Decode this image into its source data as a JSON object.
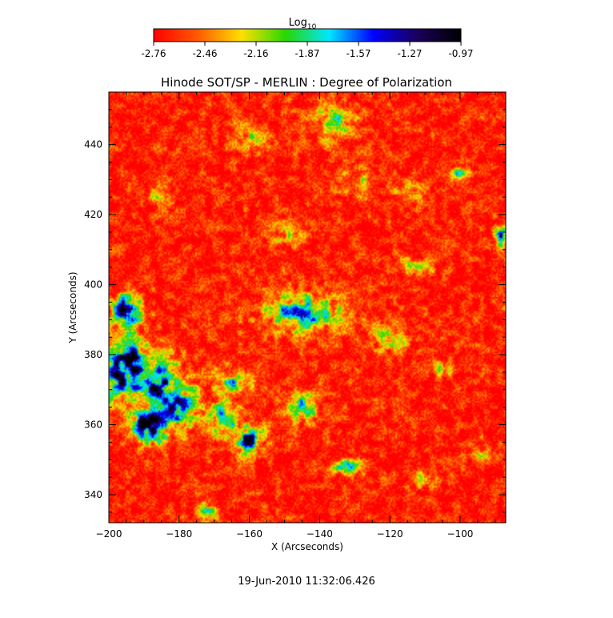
{
  "chart_data": {
    "type": "heatmap",
    "title": "Hinode SOT/SP - MERLIN : Degree of Polarization",
    "xlabel": "X (Arcseconds)",
    "ylabel": "Y (Arcseconds)",
    "xlim": [
      -200,
      -87
    ],
    "ylim": [
      332,
      455
    ],
    "x_ticks": [
      -200,
      -180,
      -160,
      -140,
      -120,
      -100
    ],
    "y_ticks": [
      340,
      360,
      380,
      400,
      420,
      440
    ],
    "colorbar": {
      "label_base": "Log",
      "label_sub": "10",
      "min": -2.76,
      "max": -0.97,
      "ticks": [
        "-2.76",
        "-2.46",
        "-2.16",
        "-1.87",
        "-1.57",
        "-1.27",
        "-0.97"
      ],
      "colors": [
        "#ff0000",
        "#ff5a00",
        "#ffe000",
        "#28d800",
        "#00e6ff",
        "#0000ff",
        "#1a005a",
        "#000000"
      ]
    },
    "background_level": -2.68,
    "clusters": [
      {
        "x": -195,
        "y": 376,
        "value": -1.05,
        "rx": 6,
        "ry": 9
      },
      {
        "x": -188,
        "y": 360,
        "value": -1.12,
        "rx": 5,
        "ry": 5
      },
      {
        "x": -186,
        "y": 372,
        "value": -1.25,
        "rx": 6,
        "ry": 7
      },
      {
        "x": -195,
        "y": 392,
        "value": -1.4,
        "rx": 4,
        "ry": 5
      },
      {
        "x": -182,
        "y": 366,
        "value": -1.5,
        "rx": 7,
        "ry": 7
      },
      {
        "x": -160,
        "y": 356,
        "value": -1.55,
        "rx": 4,
        "ry": 4
      },
      {
        "x": -145,
        "y": 392,
        "value": -1.7,
        "rx": 10,
        "ry": 5
      },
      {
        "x": -145,
        "y": 365,
        "value": -1.8,
        "rx": 4,
        "ry": 4
      },
      {
        "x": -167,
        "y": 362,
        "value": -1.9,
        "rx": 5,
        "ry": 5
      },
      {
        "x": -88,
        "y": 414,
        "value": -1.7,
        "rx": 2,
        "ry": 3
      },
      {
        "x": -100,
        "y": 432,
        "value": -1.95,
        "rx": 2,
        "ry": 2
      },
      {
        "x": -132,
        "y": 348,
        "value": -1.95,
        "rx": 4,
        "ry": 2
      },
      {
        "x": -136,
        "y": 446,
        "value": -2.05,
        "rx": 6,
        "ry": 5
      },
      {
        "x": -165,
        "y": 372,
        "value": -2.05,
        "rx": 6,
        "ry": 4
      },
      {
        "x": -172,
        "y": 336,
        "value": -2.1,
        "rx": 3,
        "ry": 3
      },
      {
        "x": -115,
        "y": 426,
        "value": -2.15,
        "rx": 4,
        "ry": 3
      },
      {
        "x": -112,
        "y": 405,
        "value": -2.25,
        "rx": 5,
        "ry": 3
      },
      {
        "x": -160,
        "y": 442,
        "value": -2.25,
        "rx": 5,
        "ry": 4
      },
      {
        "x": -105,
        "y": 376,
        "value": -2.25,
        "rx": 3,
        "ry": 3
      },
      {
        "x": -120,
        "y": 385,
        "value": -2.3,
        "rx": 6,
        "ry": 4
      },
      {
        "x": -150,
        "y": 415,
        "value": -2.3,
        "rx": 5,
        "ry": 4
      },
      {
        "x": -130,
        "y": 430,
        "value": -2.3,
        "rx": 5,
        "ry": 4
      },
      {
        "x": -110,
        "y": 345,
        "value": -2.3,
        "rx": 4,
        "ry": 3
      },
      {
        "x": -185,
        "y": 425,
        "value": -2.35,
        "rx": 4,
        "ry": 3
      },
      {
        "x": -95,
        "y": 352,
        "value": -2.35,
        "rx": 3,
        "ry": 3
      }
    ]
  },
  "timestamp": "19-Jun-2010 11:32:06.426"
}
